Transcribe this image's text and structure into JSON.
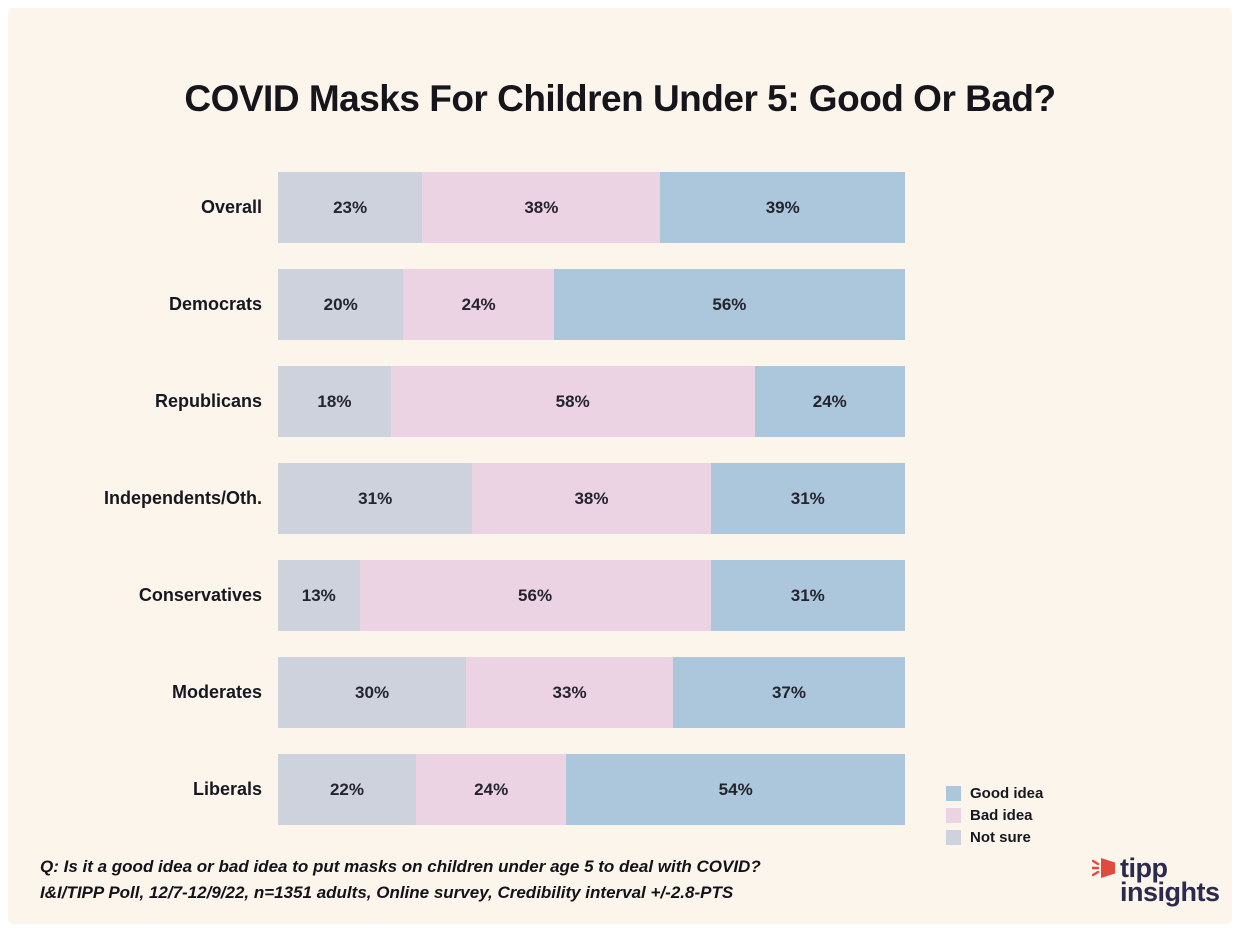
{
  "title": "COVID Masks For Children Under 5: Good Or Bad?",
  "colors": {
    "page_background": "#FFFFFF",
    "panel_background": "#FCF5EC",
    "good_idea": "#ACC7DB",
    "bad_idea": "#ECD3E3",
    "not_sure": "#CED2DD",
    "text": "#17171f",
    "logo_navy": "#2B2B4D",
    "logo_red": "#E04A3F"
  },
  "chart_data": {
    "type": "bar",
    "orientation": "horizontal",
    "stacked": true,
    "title": "COVID Masks For Children Under 5: Good Or Bad?",
    "xlabel": "",
    "ylabel": "",
    "xlim": [
      0,
      100
    ],
    "grid": false,
    "value_suffix": "%",
    "categories": [
      "Overall",
      "Democrats",
      "Republicans",
      "Independents/Oth.",
      "Conservatives",
      "Moderates",
      "Liberals"
    ],
    "series": [
      {
        "name": "Not sure",
        "color": "#CED2DD",
        "values": [
          23,
          20,
          18,
          31,
          13,
          30,
          22
        ]
      },
      {
        "name": "Bad idea",
        "color": "#ECD3E3",
        "values": [
          38,
          24,
          58,
          38,
          56,
          33,
          24
        ]
      },
      {
        "name": "Good idea",
        "color": "#ACC7DB",
        "values": [
          39,
          56,
          24,
          31,
          31,
          37,
          54
        ]
      }
    ],
    "legend_position": "bottom-right",
    "legend": [
      {
        "label": "Good idea",
        "color": "#ACC7DB"
      },
      {
        "label": "Bad idea",
        "color": "#ECD3E3"
      },
      {
        "label": "Not sure",
        "color": "#CED2DD"
      }
    ]
  },
  "footer": {
    "line1": "Q: Is it a good idea or bad idea to put masks on children under age 5 to deal with COVID?",
    "line2": "I&I/TIPP Poll, 12/7-12/9/22, n=1351 adults, Online survey, Credibility interval +/-2.8-PTS"
  },
  "logo": {
    "line1": "tipp",
    "line2": "insights"
  }
}
